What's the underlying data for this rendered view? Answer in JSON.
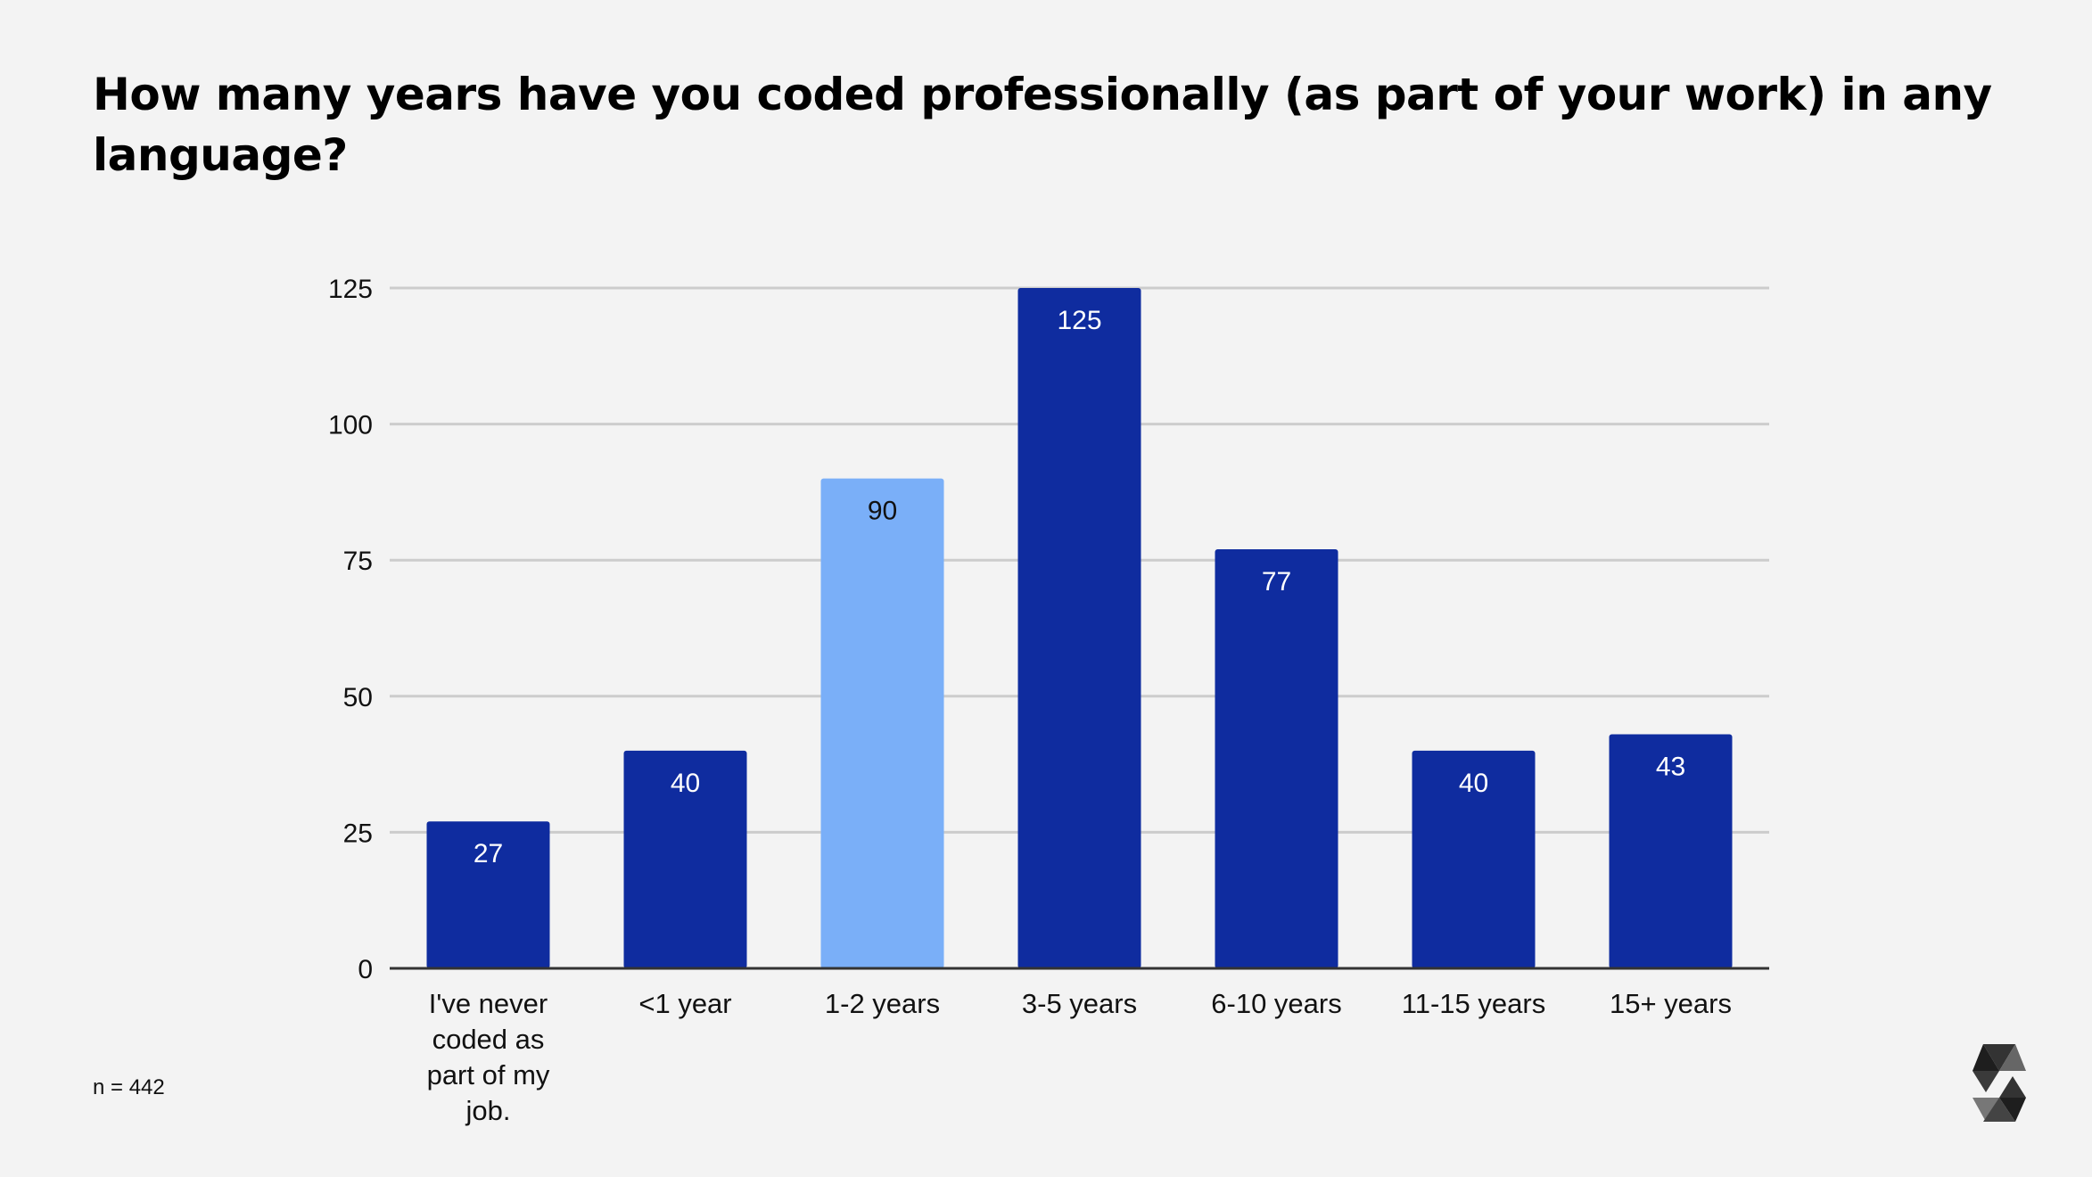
{
  "chart_data": {
    "type": "bar",
    "title": "How many years have you coded professionally (as part of your work) in any language?",
    "categories": [
      "I've never coded as part of my job.",
      "<1 year",
      "1-2 years",
      "3-5 years",
      "6-10 years",
      "11-15 years",
      "15+ years"
    ],
    "category_lines": [
      [
        "I've never",
        "coded as",
        "part of my",
        "job."
      ],
      [
        "<1 year"
      ],
      [
        "1-2 years"
      ],
      [
        "3-5 years"
      ],
      [
        "6-10 years"
      ],
      [
        "11-15 years"
      ],
      [
        "15+ years"
      ]
    ],
    "values": [
      27,
      40,
      90,
      125,
      77,
      40,
      43
    ],
    "highlight_index": 2,
    "ylim": [
      0,
      125
    ],
    "yticks": [
      0,
      25,
      50,
      75,
      100,
      125
    ],
    "grid": true,
    "xlabel": "",
    "ylabel": "",
    "colors": {
      "bar": "#0f2c9f",
      "highlight": "#7aaff8",
      "label_dark_bg": "#ffffff",
      "label_light_bg": "#111111",
      "grid": "#cccccc",
      "axis": "#333333"
    }
  },
  "footnote": "n = 442",
  "logo": "solidity-logo"
}
